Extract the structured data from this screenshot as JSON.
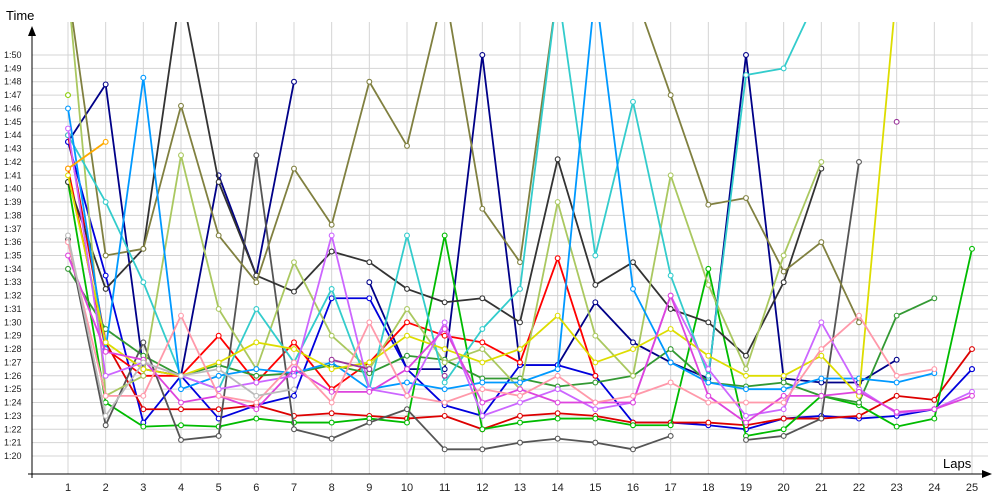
{
  "chart_data": {
    "type": "line",
    "title": "",
    "xlabel": "Laps",
    "ylabel": "Time",
    "x": [
      1,
      2,
      3,
      4,
      5,
      6,
      7,
      8,
      9,
      10,
      11,
      12,
      13,
      14,
      15,
      16,
      17,
      18,
      19,
      20,
      21,
      22,
      23,
      24,
      25
    ],
    "y_ticks": [
      "1:20",
      "1:21",
      "1:22",
      "1:23",
      "1:24",
      "1:25",
      "1:26",
      "1:27",
      "1:28",
      "1:29",
      "1:30",
      "1:31",
      "1:32",
      "1:33",
      "1:34",
      "1:35",
      "1:36",
      "1:37",
      "1:38",
      "1:39",
      "1:40",
      "1:41",
      "1:42",
      "1:43",
      "1:44",
      "1:45",
      "1:46",
      "1:47",
      "1:48",
      "1:49",
      "1:50"
    ],
    "ylim_seconds": [
      80,
      110
    ],
    "ylim_display_max_seconds": 115,
    "grid": true,
    "series": [
      {
        "color": "#000088",
        "values": [
          103.5,
          107.8,
          86.5,
          86.0,
          101.0,
          93.5,
          108.0,
          null,
          93.0,
          86.5,
          86.5,
          110.0,
          86.8,
          86.8,
          91.5,
          88.5,
          87.0,
          85.8,
          110.0,
          85.8,
          85.5,
          85.5,
          87.2,
          null,
          86.5
        ]
      },
      {
        "color": "#0000dd",
        "values": [
          103.5,
          93.5,
          82.5,
          86.0,
          82.8,
          83.8,
          84.5,
          91.8,
          91.8,
          86.5,
          83.8,
          83.0,
          86.8,
          86.8,
          86.0,
          82.5,
          82.5,
          82.3,
          82.0,
          82.8,
          83.0,
          82.8,
          83.0,
          83.5,
          86.5
        ]
      },
      {
        "color": "#dd0000",
        "values": [
          104.0,
          88.5,
          83.5,
          83.5,
          83.5,
          83.8,
          83.0,
          83.2,
          83.0,
          82.8,
          83.0,
          82.0,
          83.0,
          83.2,
          83.0,
          82.5,
          82.5,
          82.5,
          82.3,
          82.8,
          82.8,
          83.0,
          84.5,
          84.2,
          88.0
        ]
      },
      {
        "color": "#ff0000",
        "values": [
          101.5,
          88.0,
          86.0,
          86.0,
          89.0,
          85.5,
          88.5,
          85.0,
          87.0,
          90.0,
          89.0,
          88.5,
          87.0,
          94.8,
          86.0,
          null,
          null,
          null,
          null,
          null,
          null,
          null,
          null,
          null,
          null
        ]
      },
      {
        "color": "#00bb00",
        "values": [
          100.5,
          84.0,
          82.2,
          82.3,
          82.2,
          82.8,
          82.5,
          82.5,
          82.8,
          82.5,
          96.5,
          82.0,
          82.5,
          82.8,
          82.8,
          82.3,
          82.3,
          94.0,
          81.5,
          82.0,
          84.5,
          83.8,
          82.2,
          82.8,
          95.5
        ]
      },
      {
        "color": "#339933",
        "values": [
          94.0,
          89.5,
          87.5,
          86.0,
          86.8,
          86.0,
          86.2,
          86.8,
          86.2,
          87.5,
          87.2,
          85.8,
          85.8,
          85.2,
          85.5,
          86.0,
          88.0,
          85.5,
          85.2,
          85.5,
          84.5,
          84.0,
          90.5,
          91.8,
          null
        ]
      },
      {
        "color": "#555555",
        "values": [
          96.2,
          82.3,
          88.5,
          81.2,
          81.5,
          102.5,
          82.0,
          81.3,
          82.5,
          83.5,
          80.5,
          80.5,
          81.0,
          81.3,
          81.0,
          80.5,
          81.5,
          null,
          81.2,
          81.5,
          82.8,
          102.0,
          null,
          null,
          null
        ]
      },
      {
        "color": "#333333",
        "values": [
          100.5,
          92.5,
          95.5,
          115.0,
          100.5,
          93.5,
          92.3,
          95.3,
          94.5,
          92.5,
          91.5,
          91.8,
          90.0,
          102.2,
          92.8,
          94.5,
          91.0,
          90.0,
          87.5,
          93.0,
          101.5,
          null,
          null,
          null,
          null
        ]
      },
      {
        "color": "#808040",
        "values": [
          115.0,
          95.0,
          95.5,
          106.2,
          96.5,
          93.0,
          101.5,
          97.3,
          108.0,
          103.2,
          115.0,
          98.5,
          94.5,
          115.0,
          null,
          115.0,
          107.0,
          98.8,
          99.3,
          93.8,
          96.0,
          90.0,
          null,
          null,
          null
        ]
      },
      {
        "color": "#aac860",
        "values": [
          115.0,
          84.5,
          86.0,
          102.5,
          91.0,
          86.5,
          94.5,
          89.0,
          86.5,
          91.0,
          87.0,
          88.0,
          85.0,
          99.0,
          89.0,
          86.0,
          101.0,
          92.8,
          86.5,
          95.0,
          102.0,
          null,
          null,
          null,
          null
        ]
      },
      {
        "color": "#33cccc",
        "values": [
          104.0,
          99.0,
          93.0,
          86.0,
          85.0,
          91.0,
          87.0,
          92.5,
          85.0,
          96.5,
          85.5,
          89.5,
          92.5,
          115.0,
          95.0,
          106.5,
          93.5,
          86.0,
          108.5,
          109.0,
          115.0,
          null,
          null,
          null,
          null
        ]
      },
      {
        "color": "#0099ff",
        "values": [
          106.0,
          88.0,
          108.3,
          85.0,
          86.0,
          86.5,
          86.2,
          87.0,
          85.0,
          85.5,
          85.0,
          85.5,
          85.5,
          86.5,
          115.0,
          92.5,
          87.0,
          85.5,
          85.0,
          85.0,
          85.8,
          85.8,
          85.5,
          86.2,
          null
        ]
      },
      {
        "color": "#dddd00",
        "values": [
          101.0,
          88.5,
          86.5,
          86.0,
          87.0,
          88.5,
          88.0,
          86.5,
          87.0,
          89.0,
          88.0,
          87.0,
          88.0,
          90.5,
          87.0,
          88.0,
          89.5,
          87.5,
          86.0,
          86.0,
          87.5,
          84.5,
          115.0,
          null,
          null
        ]
      },
      {
        "color": "#cc66ff",
        "values": [
          104.5,
          86.0,
          87.0,
          86.0,
          85.0,
          85.5,
          86.0,
          96.5,
          85.0,
          84.5,
          90.0,
          83.0,
          84.0,
          85.0,
          83.5,
          84.0,
          92.0,
          86.5,
          83.0,
          83.5,
          90.0,
          85.0,
          83.2,
          83.5,
          84.8
        ]
      },
      {
        "color": "#dd44dd",
        "values": [
          95.0,
          87.8,
          87.2,
          84.0,
          84.5,
          83.5,
          86.5,
          84.8,
          84.8,
          86.5,
          89.5,
          84.0,
          85.0,
          84.0,
          84.0,
          84.0,
          92.0,
          84.5,
          82.5,
          84.5,
          84.5,
          84.8,
          83.3,
          83.5,
          84.5
        ]
      },
      {
        "color": "#993399",
        "values": [
          null,
          null,
          null,
          null,
          null,
          null,
          null,
          87.2,
          86.5,
          null,
          86.0,
          null,
          null,
          null,
          null,
          null,
          null,
          null,
          null,
          null,
          null,
          null,
          105.0,
          null,
          null
        ]
      },
      {
        "color": "#ff99aa",
        "values": [
          96.0,
          84.5,
          84.5,
          90.5,
          84.5,
          84.0,
          87.0,
          84.0,
          90.0,
          84.5,
          84.0,
          85.0,
          84.5,
          86.0,
          84.0,
          84.5,
          85.5,
          84.0,
          84.0,
          84.0,
          88.0,
          90.5,
          86.0,
          86.5,
          null
        ]
      },
      {
        "color": "#ffaa00",
        "values": [
          101.5,
          103.5,
          null,
          null,
          null,
          null,
          null,
          null,
          null,
          null,
          null,
          null,
          null,
          null,
          null,
          null,
          null,
          null,
          null,
          null,
          null,
          null,
          null,
          null,
          null
        ]
      },
      {
        "color": "#bbbbbb",
        "values": [
          96.5,
          83.0,
          87.0,
          86.0,
          86.5,
          84.5,
          85.0,
          null,
          null,
          null,
          null,
          null,
          null,
          null,
          null,
          null,
          null,
          null,
          null,
          null,
          null,
          null,
          null,
          null,
          null
        ]
      },
      {
        "color": "#88cc00",
        "values": [
          107.0,
          null,
          null,
          null,
          null,
          null,
          null,
          null,
          null,
          null,
          null,
          null,
          null,
          null,
          null,
          null,
          null,
          null,
          null,
          null,
          null,
          null,
          null,
          null,
          null
        ]
      }
    ]
  }
}
